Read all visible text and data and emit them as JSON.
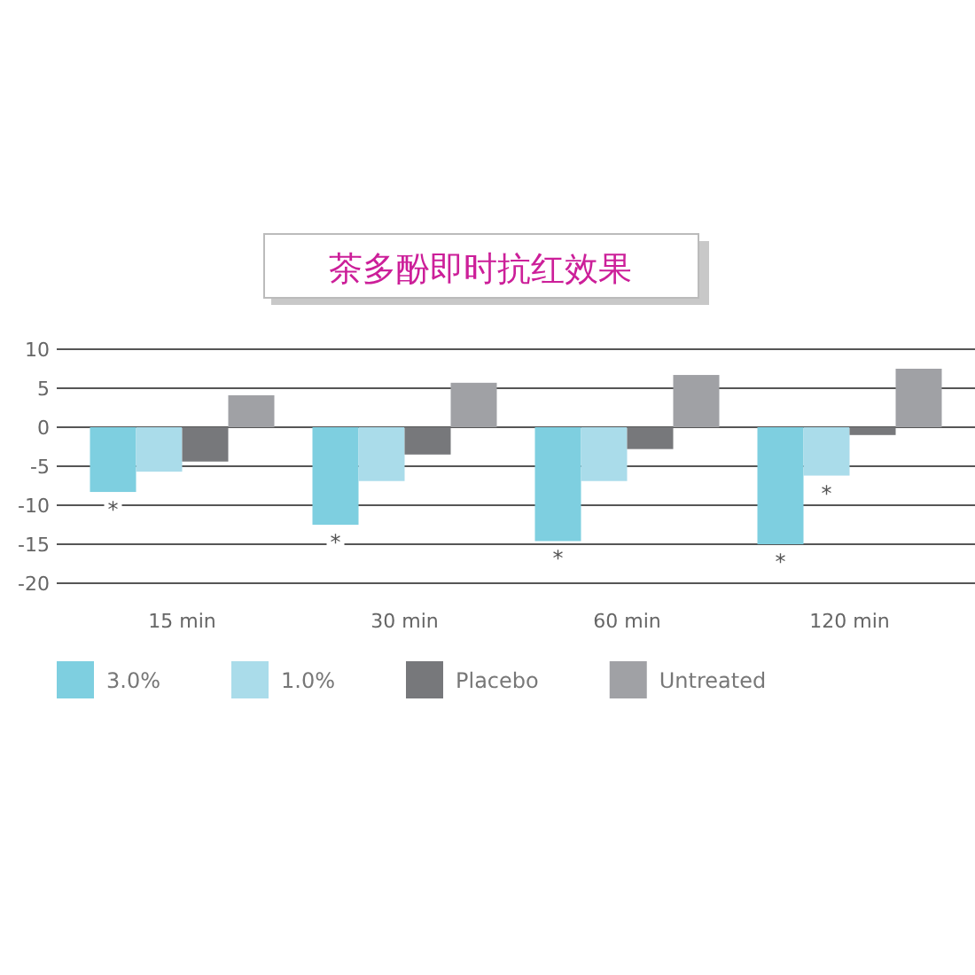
{
  "chart_data": {
    "type": "bar",
    "title": "茶多酚即时抗红效果",
    "categories": [
      "15 min",
      "30 min",
      "60 min",
      "120 min"
    ],
    "series": [
      {
        "name": "3.0%",
        "color": "#7ecfe0",
        "values": [
          -8.3,
          -12.5,
          -14.6,
          -15
        ],
        "value_labels": [
          "*",
          "*",
          "*",
          "*"
        ]
      },
      {
        "name": "1.0%",
        "color": "#aadcea",
        "values": [
          -5.7,
          -6.9,
          -6.9,
          -6.2
        ],
        "value_labels": [
          null,
          null,
          null,
          "*"
        ]
      },
      {
        "name": "Placebo",
        "color": "#77787b",
        "values": [
          -4.4,
          -3.5,
          -2.8,
          -1.0
        ]
      },
      {
        "name": "Untreated",
        "color": "#a0a1a5",
        "values": [
          4.1,
          5.7,
          6.7,
          7.5
        ]
      }
    ],
    "ylim": [
      -20,
      10
    ],
    "yticks": [
      -20,
      -15,
      -10,
      -5,
      0,
      5,
      10
    ],
    "grid": "y",
    "legend": "bottom"
  }
}
